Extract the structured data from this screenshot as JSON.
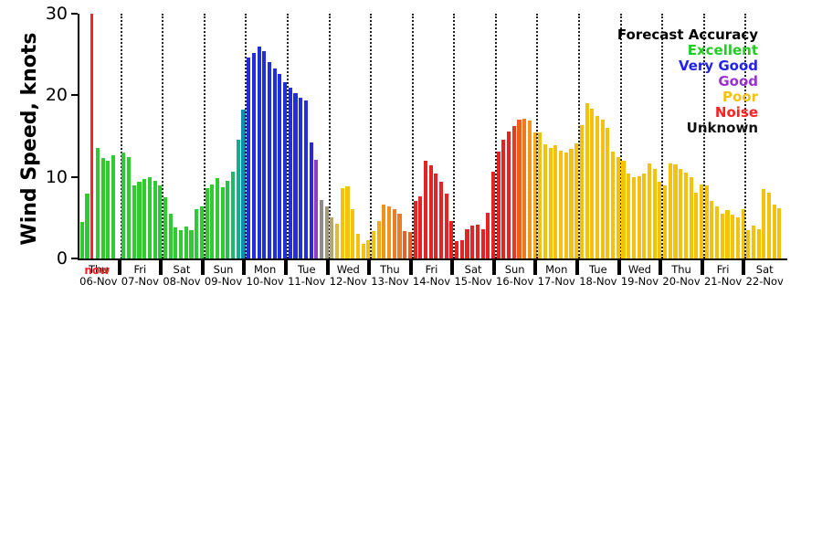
{
  "chart_data": {
    "type": "bar",
    "ylabel": "Wind Speed, knots",
    "ylim": [
      0,
      30
    ],
    "yticks": [
      0,
      10,
      20,
      30
    ],
    "grid": "vertical-dotted-day-boundaries",
    "legend": {
      "position": "top-right",
      "title": "Forecast Accuracy",
      "entries": [
        {
          "label": "Excellent",
          "color": "#22cc22"
        },
        {
          "label": "Very Good",
          "color": "#2222ee"
        },
        {
          "label": "Good",
          "color": "#9933cc"
        },
        {
          "label": "Poor",
          "color": "#f4c20d"
        },
        {
          "label": "Noise",
          "color": "#ff2222"
        },
        {
          "label": "Unknown",
          "color": "#111111"
        }
      ]
    },
    "now_marker": {
      "label": "now",
      "color": "#ff2222"
    },
    "days": [
      {
        "name": "Thu",
        "date": "06-Nov",
        "bars": [
          {
            "v": 4.5,
            "c": "#2fcc2f"
          },
          {
            "v": 8,
            "c": "#2fcc2f"
          },
          {
            "now": true
          },
          {
            "v": 13.5,
            "c": "#2fcc2f"
          },
          {
            "v": 12.3,
            "c": "#2fcc2f"
          },
          {
            "v": 12,
            "c": "#2fcc2f"
          },
          {
            "v": 12.6,
            "c": "#2fcc2f"
          }
        ]
      },
      {
        "name": "Fri",
        "date": "07-Nov",
        "bars": [
          {
            "v": 13,
            "c": "#2fcc2f"
          },
          {
            "v": 12.4,
            "c": "#2fcc2f"
          },
          {
            "v": 9,
            "c": "#2fcc2f"
          },
          {
            "v": 9.4,
            "c": "#2fcc2f"
          },
          {
            "v": 9.7,
            "c": "#2fcc2f"
          },
          {
            "v": 10,
            "c": "#2fcc2f"
          },
          {
            "v": 9.5,
            "c": "#2fcc2f"
          },
          {
            "v": 9,
            "c": "#2fcc2f"
          }
        ]
      },
      {
        "name": "Sat",
        "date": "08-Nov",
        "bars": [
          {
            "v": 7.5,
            "c": "#2fcc2f"
          },
          {
            "v": 5.5,
            "c": "#2fcc2f"
          },
          {
            "v": 3.8,
            "c": "#2fcc2f"
          },
          {
            "v": 3.5,
            "c": "#2fcc2f"
          },
          {
            "v": 3.9,
            "c": "#2fcc2f"
          },
          {
            "v": 3.5,
            "c": "#2fcc2f"
          },
          {
            "v": 6,
            "c": "#2fcc2f"
          },
          {
            "v": 6.4,
            "c": "#2fcc2f"
          }
        ]
      },
      {
        "name": "Sun",
        "date": "09-Nov",
        "bars": [
          {
            "v": 8.6,
            "c": "#2fcc2f"
          },
          {
            "v": 9.1,
            "c": "#2fcc2f"
          },
          {
            "v": 9.8,
            "c": "#2fcc2f"
          },
          {
            "v": 8.7,
            "c": "#2fcc2f"
          },
          {
            "v": 9.5,
            "c": "#24c24a"
          },
          {
            "v": 10.6,
            "c": "#1cbc66"
          },
          {
            "v": 14.6,
            "c": "#0fae8d"
          },
          {
            "v": 18.2,
            "c": "#0b8fb0"
          }
        ]
      },
      {
        "name": "Mon",
        "date": "10-Nov",
        "bars": [
          {
            "v": 24.6,
            "c": "#1f2fe0"
          },
          {
            "v": 25.2,
            "c": "#1f2fe0"
          },
          {
            "v": 26,
            "c": "#1f2fe0"
          },
          {
            "v": 25.4,
            "c": "#1f2fe0"
          },
          {
            "v": 24.1,
            "c": "#1f2fe0"
          },
          {
            "v": 23.3,
            "c": "#1f2fe0"
          },
          {
            "v": 22.6,
            "c": "#1f2fe0"
          },
          {
            "v": 21.6,
            "c": "#1f2fe0"
          }
        ]
      },
      {
        "name": "Tue",
        "date": "11-Nov",
        "bars": [
          {
            "v": 20.9,
            "c": "#1f2fe0"
          },
          {
            "v": 20.3,
            "c": "#1f2fe0"
          },
          {
            "v": 19.7,
            "c": "#1f2fe0"
          },
          {
            "v": 19.4,
            "c": "#1f2fe0"
          },
          {
            "v": 14.2,
            "c": "#2a28d8"
          },
          {
            "v": 12.1,
            "c": "#8c3fc0"
          },
          {
            "v": 7.2,
            "c": "#8c8c8c"
          },
          {
            "v": 6.4,
            "c": "#a39a7a"
          }
        ]
      },
      {
        "name": "Wed",
        "date": "12-Nov",
        "bars": [
          {
            "v": 5,
            "c": "#b3a66e"
          },
          {
            "v": 4.2,
            "c": "#e3b93a"
          },
          {
            "v": 8.6,
            "c": "#f4c20d"
          },
          {
            "v": 8.8,
            "c": "#f4c20d"
          },
          {
            "v": 6,
            "c": "#f4c20d"
          },
          {
            "v": 3,
            "c": "#f4c20d"
          },
          {
            "v": 1.8,
            "c": "#f4c20d"
          },
          {
            "v": 2.2,
            "c": "#f4c20d"
          }
        ]
      },
      {
        "name": "Thu",
        "date": "13-Nov",
        "bars": [
          {
            "v": 3.4,
            "c": "#f4c20d"
          },
          {
            "v": 4.6,
            "c": "#f2a81d"
          },
          {
            "v": 6.6,
            "c": "#f0921e"
          },
          {
            "v": 6.4,
            "c": "#f0921e"
          },
          {
            "v": 6,
            "c": "#ee7d1f"
          },
          {
            "v": 5.5,
            "c": "#ee7d1f"
          },
          {
            "v": 3.4,
            "c": "#ec5f20"
          },
          {
            "v": 3.3,
            "c": "#ec5f20"
          }
        ]
      },
      {
        "name": "Fri",
        "date": "14-Nov",
        "bars": [
          {
            "v": 7.1,
            "c": "#e62222"
          },
          {
            "v": 7.6,
            "c": "#e62222"
          },
          {
            "v": 12,
            "c": "#e62222"
          },
          {
            "v": 11.4,
            "c": "#e62222"
          },
          {
            "v": 10.4,
            "c": "#e62222"
          },
          {
            "v": 9.4,
            "c": "#e62222"
          },
          {
            "v": 8,
            "c": "#e62222"
          },
          {
            "v": 4.6,
            "c": "#e62222"
          }
        ]
      },
      {
        "name": "Sat",
        "date": "15-Nov",
        "bars": [
          {
            "v": 2.1,
            "c": "#e62222"
          },
          {
            "v": 2.2,
            "c": "#e62222"
          },
          {
            "v": 3.6,
            "c": "#e62222"
          },
          {
            "v": 4,
            "c": "#e62222"
          },
          {
            "v": 4.1,
            "c": "#e62222"
          },
          {
            "v": 3.6,
            "c": "#e62222"
          },
          {
            "v": 5.6,
            "c": "#e62222"
          },
          {
            "v": 10.6,
            "c": "#e62222"
          }
        ]
      },
      {
        "name": "Sun",
        "date": "16-Nov",
        "bars": [
          {
            "v": 13.1,
            "c": "#e62222"
          },
          {
            "v": 14.6,
            "c": "#e62222"
          },
          {
            "v": 15.6,
            "c": "#e62222"
          },
          {
            "v": 16.2,
            "c": "#e73a20"
          },
          {
            "v": 17,
            "c": "#ec5f20"
          },
          {
            "v": 17.1,
            "c": "#f0791f"
          },
          {
            "v": 16.9,
            "c": "#f2941e"
          },
          {
            "v": 15.4,
            "c": "#f4ae16"
          }
        ]
      },
      {
        "name": "Mon",
        "date": "17-Nov",
        "bars": [
          {
            "v": 15.4,
            "c": "#f4c20d"
          },
          {
            "v": 14,
            "c": "#f4c20d"
          },
          {
            "v": 13.5,
            "c": "#f4c20d"
          },
          {
            "v": 13.9,
            "c": "#f4c20d"
          },
          {
            "v": 13.2,
            "c": "#f4c20d"
          },
          {
            "v": 13,
            "c": "#f4c20d"
          },
          {
            "v": 13.4,
            "c": "#f4c20d"
          },
          {
            "v": 14.1,
            "c": "#f4c20d"
          }
        ]
      },
      {
        "name": "Tue",
        "date": "18-Nov",
        "bars": [
          {
            "v": 16.4,
            "c": "#f4c20d"
          },
          {
            "v": 19,
            "c": "#f4c20d"
          },
          {
            "v": 18.4,
            "c": "#f4c20d"
          },
          {
            "v": 17.5,
            "c": "#f4c20d"
          },
          {
            "v": 17,
            "c": "#f4c20d"
          },
          {
            "v": 16,
            "c": "#f4c20d"
          },
          {
            "v": 13.1,
            "c": "#f4c20d"
          },
          {
            "v": 12.4,
            "c": "#f4c20d"
          }
        ]
      },
      {
        "name": "Wed",
        "date": "19-Nov",
        "bars": [
          {
            "v": 12,
            "c": "#f4c20d"
          },
          {
            "v": 10.4,
            "c": "#f4c20d"
          },
          {
            "v": 10,
            "c": "#f4c20d"
          },
          {
            "v": 10.1,
            "c": "#f4c20d"
          },
          {
            "v": 10.4,
            "c": "#f4c20d"
          },
          {
            "v": 11.6,
            "c": "#f4c20d"
          },
          {
            "v": 11,
            "c": "#f4c20d"
          },
          {
            "v": 9.4,
            "c": "#f4c20d"
          }
        ]
      },
      {
        "name": "Thu",
        "date": "20-Nov",
        "bars": [
          {
            "v": 9,
            "c": "#f4c20d"
          },
          {
            "v": 11.6,
            "c": "#f4c20d"
          },
          {
            "v": 11.5,
            "c": "#f4c20d"
          },
          {
            "v": 11,
            "c": "#f4c20d"
          },
          {
            "v": 10.5,
            "c": "#f4c20d"
          },
          {
            "v": 10,
            "c": "#f4c20d"
          },
          {
            "v": 8.1,
            "c": "#f4c20d"
          },
          {
            "v": 9.1,
            "c": "#f4c20d"
          }
        ]
      },
      {
        "name": "Fri",
        "date": "21-Nov",
        "bars": [
          {
            "v": 9,
            "c": "#f4c20d"
          },
          {
            "v": 7,
            "c": "#f4c20d"
          },
          {
            "v": 6.4,
            "c": "#f4c20d"
          },
          {
            "v": 5.5,
            "c": "#f4c20d"
          },
          {
            "v": 5.9,
            "c": "#f4c20d"
          },
          {
            "v": 5.4,
            "c": "#f4c20d"
          },
          {
            "v": 5,
            "c": "#f4c20d"
          },
          {
            "v": 6.1,
            "c": "#f4c20d"
          }
        ]
      },
      {
        "name": "Sat",
        "date": "22-Nov",
        "bars": [
          {
            "v": 3.5,
            "c": "#f4c20d"
          },
          {
            "v": 4,
            "c": "#f4c20d"
          },
          {
            "v": 3.6,
            "c": "#f4c20d"
          },
          {
            "v": 8.5,
            "c": "#f4c20d"
          },
          {
            "v": 8.1,
            "c": "#f4c20d"
          },
          {
            "v": 6.6,
            "c": "#f4c20d"
          },
          {
            "v": 6.2,
            "c": "#f4c20d"
          }
        ]
      }
    ]
  }
}
